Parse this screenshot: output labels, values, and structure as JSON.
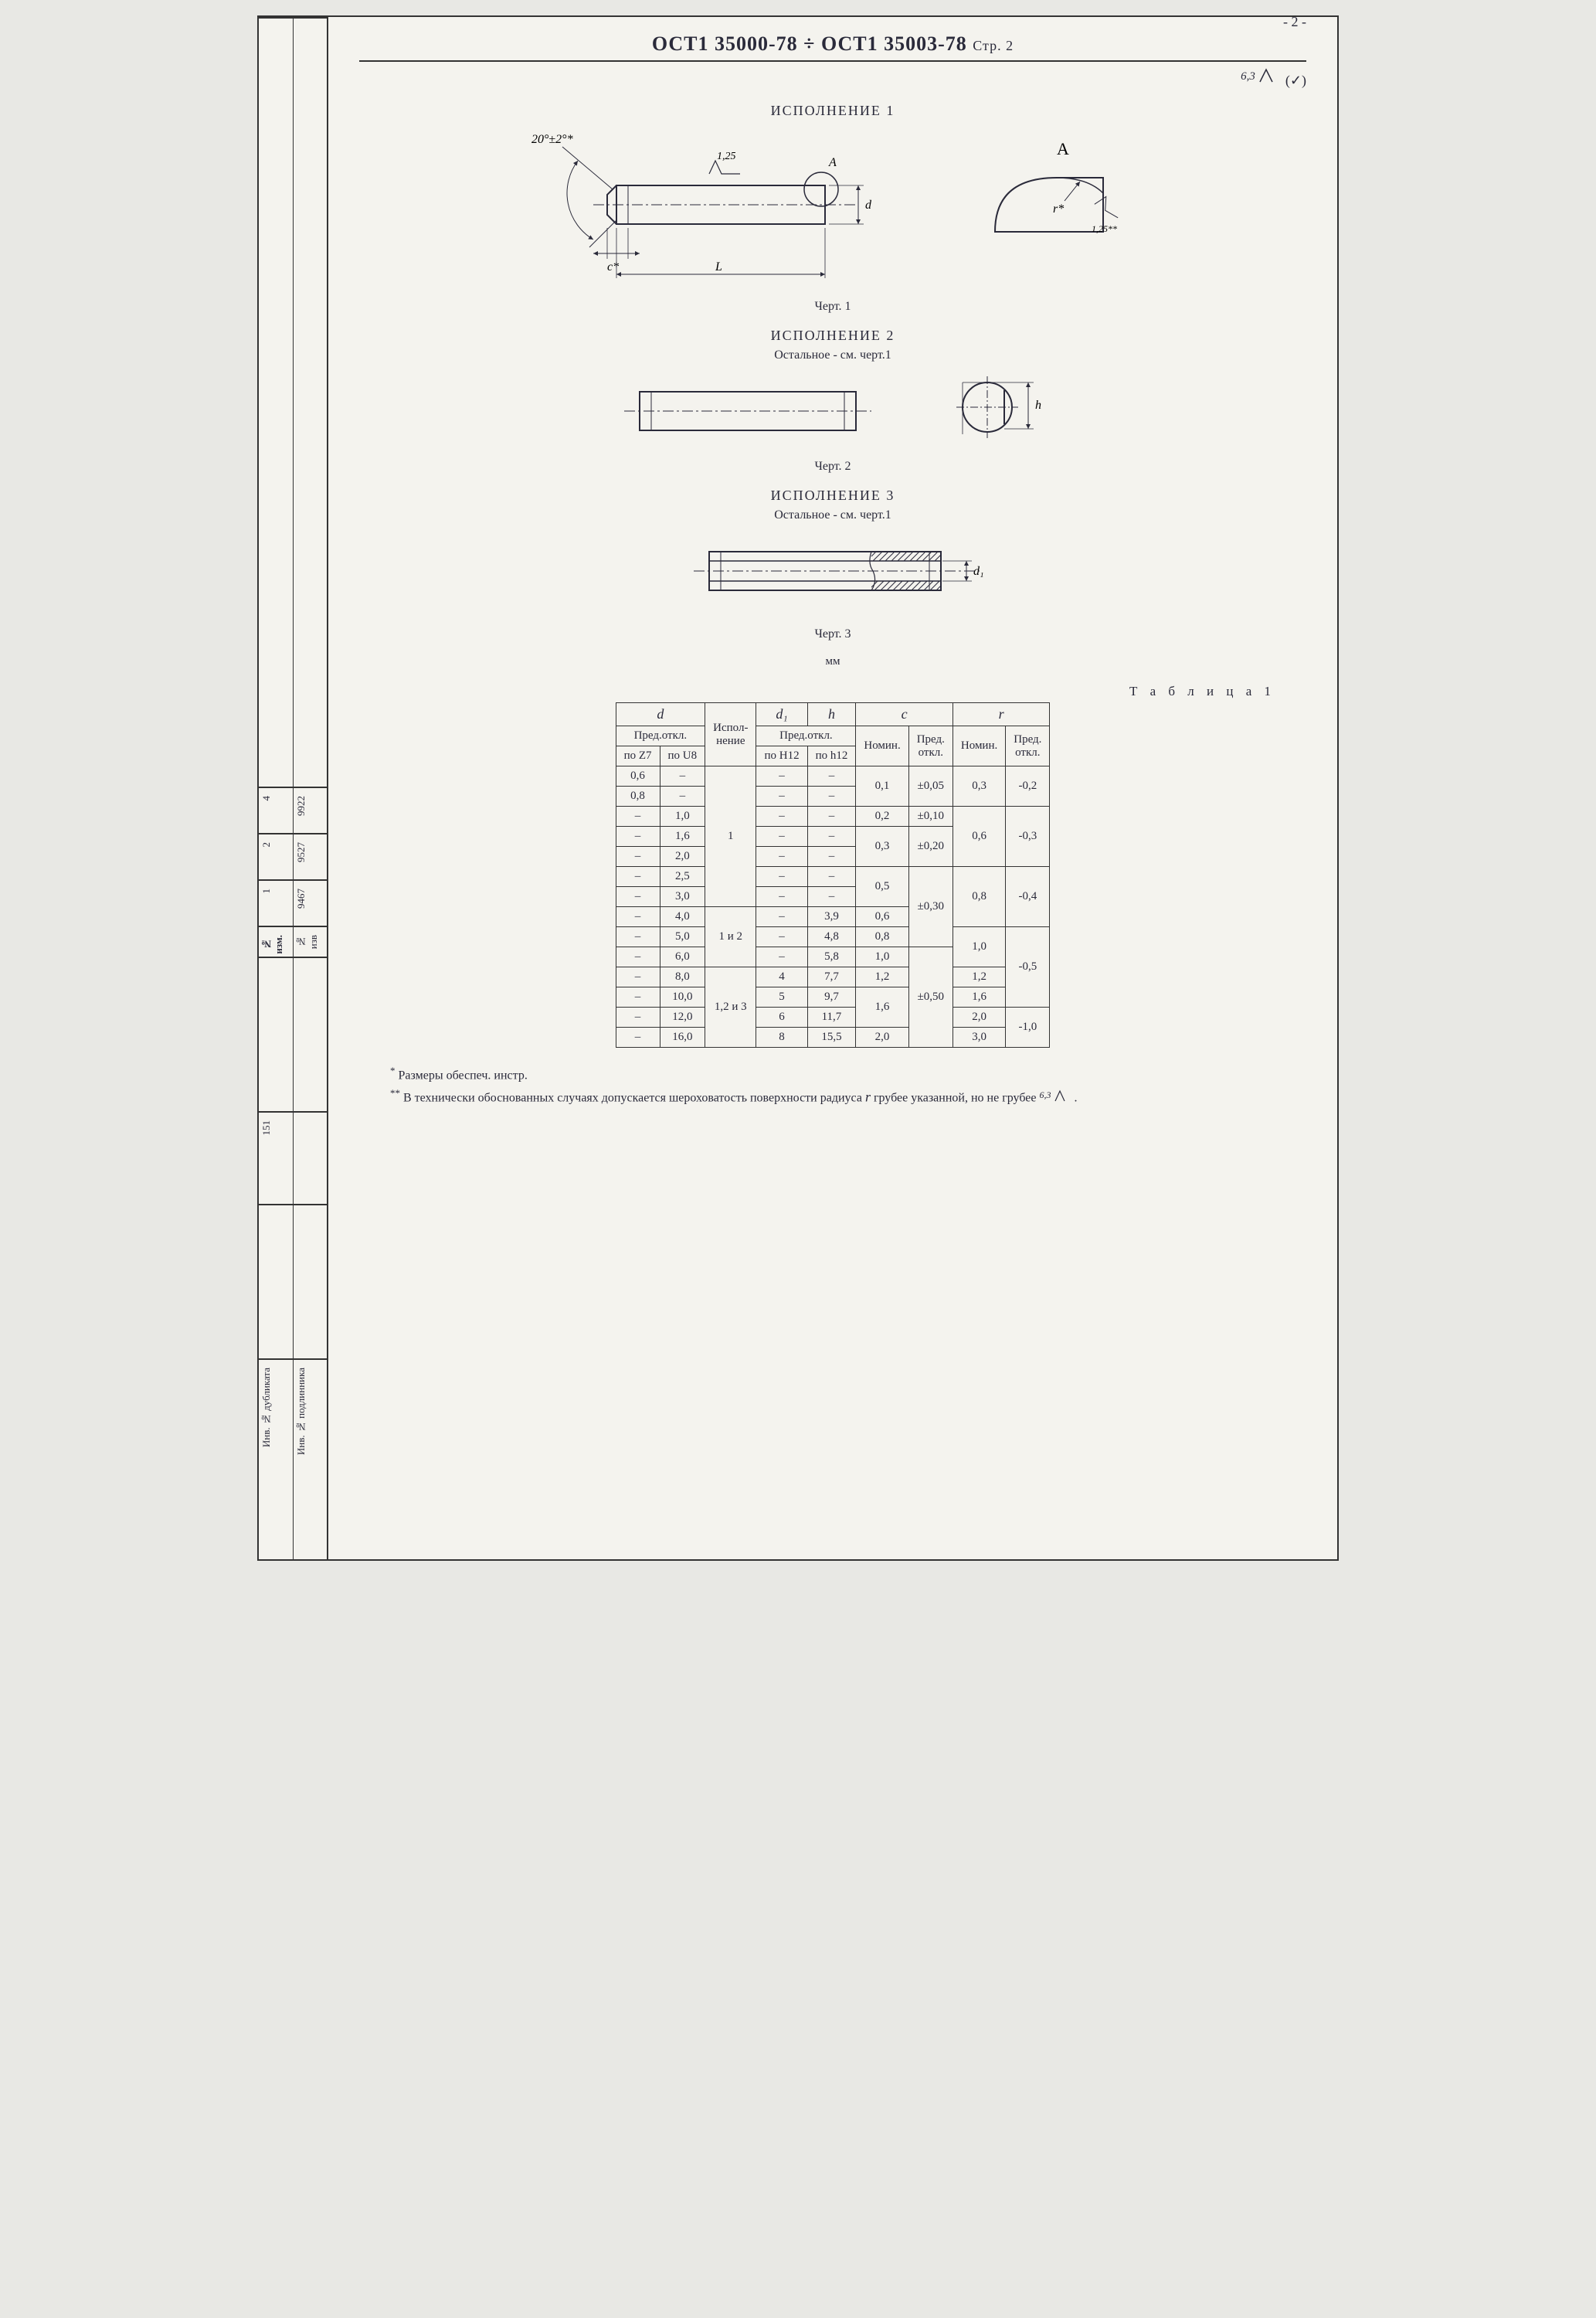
{
  "page_number_top": "- 2 -",
  "header": {
    "standard": "ОСТ1 35000-78 ÷ ОСТ1 35003-78",
    "page_label": "Стр. 2"
  },
  "surface_global": {
    "ra": "6,3",
    "paren": "(✓)"
  },
  "detail_label": "А",
  "variants": {
    "v1": {
      "title": "ИСПОЛНЕНИЕ 1",
      "caption": "Черт. 1"
    },
    "v2": {
      "title": "ИСПОЛНЕНИЕ 2",
      "note": "Остальное - см. черт.1",
      "caption": "Черт. 2"
    },
    "v3": {
      "title": "ИСПОЛНЕНИЕ 3",
      "note": "Остальное - см. черт.1",
      "caption": "Черт. 3"
    }
  },
  "dims": {
    "angle": "20°±2°*",
    "ra_local": "1,25",
    "c_star": "c*",
    "L": "L",
    "d": "d",
    "d1": "d₁",
    "h": "h",
    "r_star": "r*",
    "ra_r": "1,25**"
  },
  "table": {
    "caption": "Т а б л и ц а  1",
    "unit": "мм",
    "head": {
      "d": "d",
      "d_sub": "Пред.откл.",
      "d_z7": "по Z7",
      "d_u8": "по U8",
      "ispol": "Испол-\nнение",
      "d1": "d₁",
      "h": "h",
      "d1h_sub": "Пред.откл.",
      "d1_h12": "по H12",
      "h_h12": "по h12",
      "c": "c",
      "r": "r",
      "nomin": "Номин.",
      "pred": "Пред.\nоткл."
    },
    "rows": [
      {
        "z7": "0,6",
        "u8": "–",
        "isp": "",
        "d1": "–",
        "h": "–",
        "cN": "",
        "cP": "",
        "rN": "",
        "rP": ""
      },
      {
        "z7": "0,8",
        "u8": "–",
        "isp": "",
        "d1": "–",
        "h": "–",
        "cN": "0,1",
        "cP": "±0,05",
        "rN": "0,3",
        "rP": "-0,2"
      },
      {
        "z7": "–",
        "u8": "1,0",
        "isp": "",
        "d1": "–",
        "h": "–",
        "cN": "0,2",
        "cP": "±0,10",
        "rN": "",
        "rP": ""
      },
      {
        "z7": "–",
        "u8": "1,6",
        "isp": "1",
        "d1": "–",
        "h": "–",
        "cN": "",
        "cP": "",
        "rN": "0,6",
        "rP": "-0,3"
      },
      {
        "z7": "–",
        "u8": "2,0",
        "isp": "",
        "d1": "–",
        "h": "–",
        "cN": "0,3",
        "cP": "±0,20",
        "rN": "",
        "rP": ""
      },
      {
        "z7": "–",
        "u8": "2,5",
        "isp": "",
        "d1": "–",
        "h": "–",
        "cN": "",
        "cP": "",
        "rN": "",
        "rP": ""
      },
      {
        "z7": "–",
        "u8": "3,0",
        "isp": "",
        "d1": "–",
        "h": "–",
        "cN": "0,5",
        "cP": "",
        "rN": "0,8",
        "rP": "-0,4"
      },
      {
        "z7": "–",
        "u8": "4,0",
        "isp": "",
        "d1": "–",
        "h": "3,9",
        "cN": "0,6",
        "cP": "±0,30",
        "rN": "",
        "rP": ""
      },
      {
        "z7": "–",
        "u8": "5,0",
        "isp": "1 и 2",
        "d1": "–",
        "h": "4,8",
        "cN": "0,8",
        "cP": "",
        "rN": "1,0",
        "rP": ""
      },
      {
        "z7": "–",
        "u8": "6,0",
        "isp": "",
        "d1": "–",
        "h": "5,8",
        "cN": "1,0",
        "cP": "",
        "rN": "",
        "rP": ""
      },
      {
        "z7": "–",
        "u8": "8,0",
        "isp": "",
        "d1": "4",
        "h": "7,7",
        "cN": "1,2",
        "cP": "",
        "rN": "1,2",
        "rP": "-0,5"
      },
      {
        "z7": "–",
        "u8": "10,0",
        "isp": "",
        "d1": "5",
        "h": "9,7",
        "cN": "",
        "cP": "±0,50",
        "rN": "1,6",
        "rP": ""
      },
      {
        "z7": "–",
        "u8": "12,0",
        "isp": "1,2 и 3",
        "d1": "6",
        "h": "11,7",
        "cN": "1,6",
        "cP": "",
        "rN": "2,0",
        "rP": ""
      },
      {
        "z7": "–",
        "u8": "16,0",
        "isp": "",
        "d1": "8",
        "h": "15,5",
        "cN": "2,0",
        "cP": "",
        "rN": "3,0",
        "rP": "-1,0"
      }
    ]
  },
  "footnotes": {
    "f1_mark": "*",
    "f1": "Размеры обеспеч. инстр.",
    "f2_mark": "**",
    "f2a": "В технически обоснованных случаях допускается шероховатость поверхности радиуса ",
    "f2_r": "r",
    "f2b": " грубее указанной, но не грубее ",
    "f2_ra": "6,3",
    "f2c": "."
  },
  "left_margin": {
    "rev_nums": [
      "1",
      "2",
      "4"
    ],
    "rev_codes": [
      "9467",
      "9527",
      "9922"
    ],
    "izm": "№ изм.",
    "izv": "№ изв",
    "num151": "151",
    "dup": "Инв. № дубликата",
    "podl": "Инв. № подлинника"
  },
  "colors": {
    "line": "#2a2a3a",
    "hatch": "#2a2a3a",
    "paper": "#f4f3ee"
  }
}
